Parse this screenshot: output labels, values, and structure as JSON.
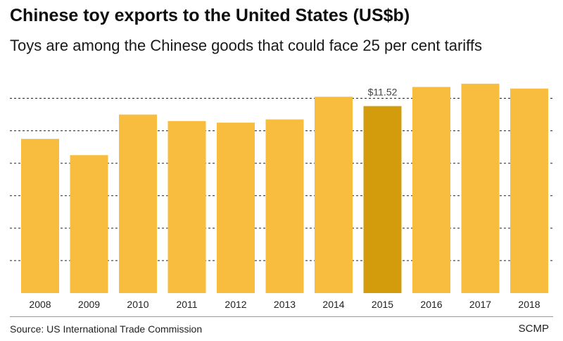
{
  "header": {
    "title": "Chinese toy exports to the United States (US$b)",
    "subtitle": "Toys are among the Chinese goods that could face 25 per cent tariffs"
  },
  "footer": {
    "source": "Source: US International Trade Commission",
    "brand": "SCMP"
  },
  "colors": {
    "bar": "#f8bd3e",
    "highlight_bar": "#d39c0c",
    "gridline": "#222222",
    "tick_text": "#222222"
  },
  "chart_data": {
    "type": "bar",
    "categories": [
      "2008",
      "2009",
      "2010",
      "2011",
      "2012",
      "2013",
      "2014",
      "2015",
      "2016",
      "2017",
      "2018"
    ],
    "values": [
      9.5,
      8.5,
      11.0,
      10.6,
      10.5,
      10.7,
      12.1,
      11.52,
      12.7,
      12.9,
      12.6
    ],
    "highlight": {
      "category": "2015",
      "label": "$11.52"
    },
    "ylim": [
      0,
      13.5
    ],
    "grid": true,
    "grid_style": "dashed",
    "xlabel": "",
    "ylabel": ""
  }
}
